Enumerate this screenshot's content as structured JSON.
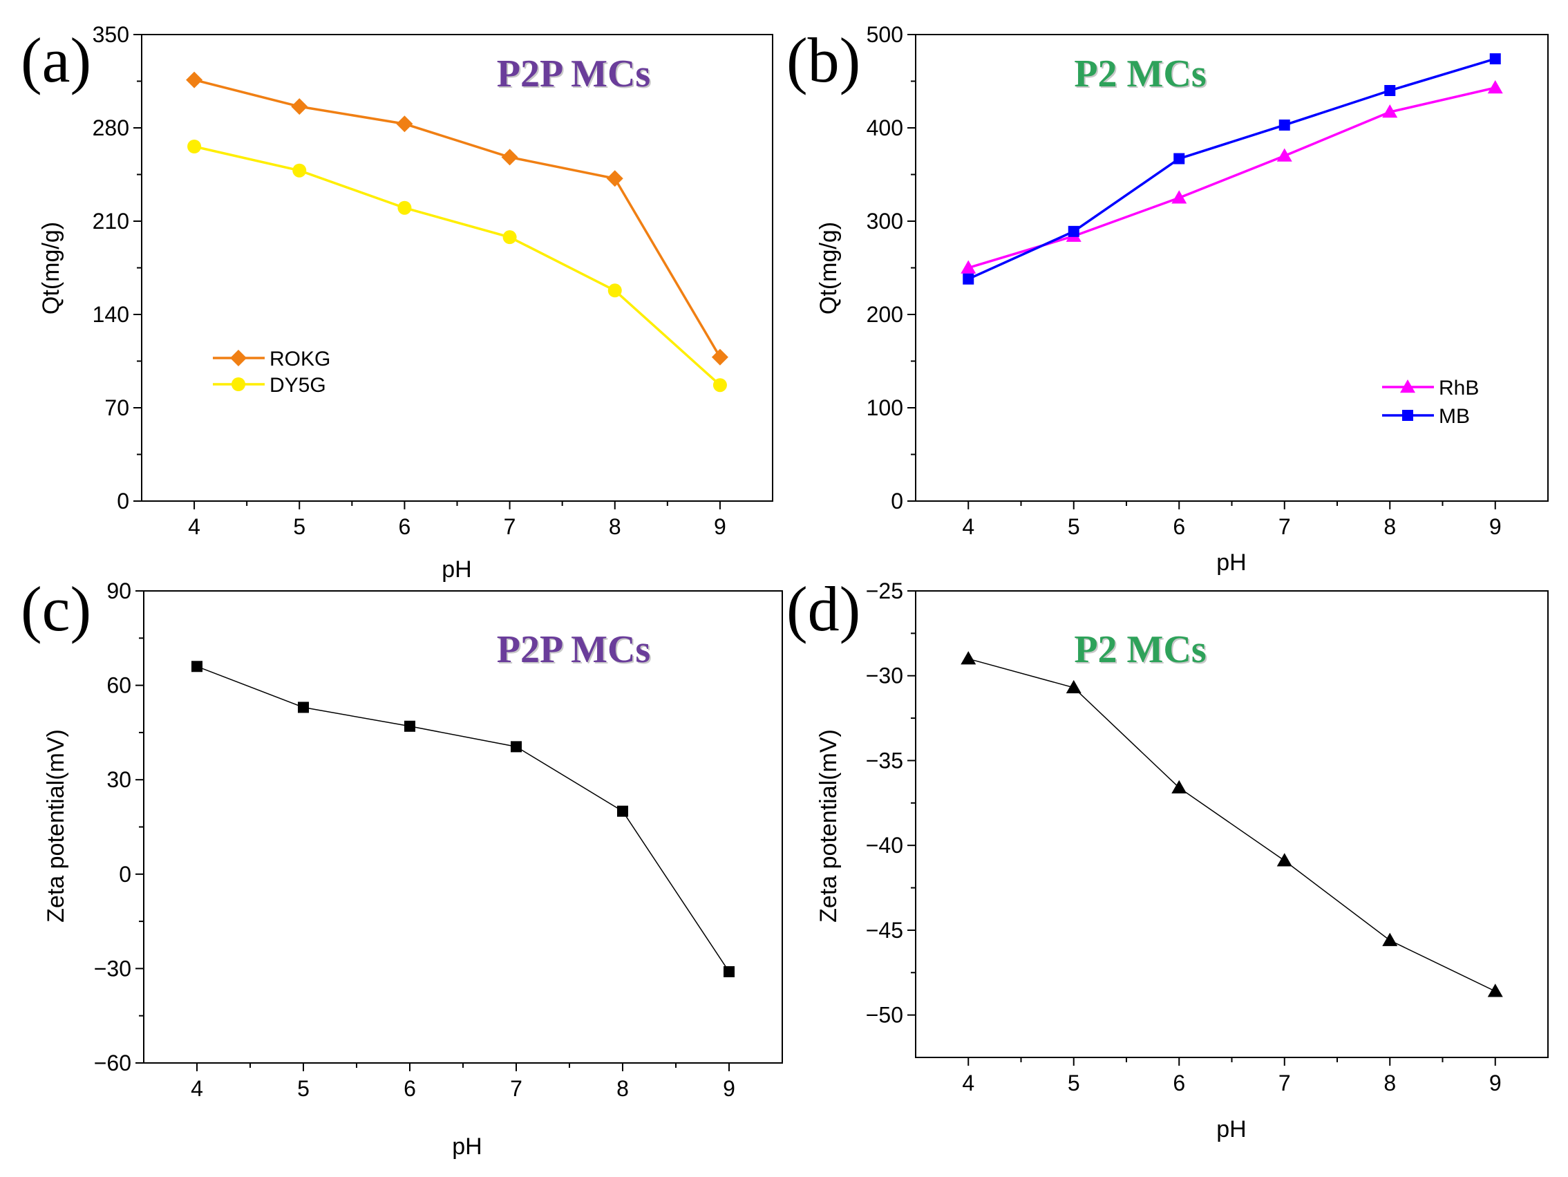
{
  "chart_data": [
    {
      "type": "line",
      "panel_label": "(a)",
      "annotation": "P2P MCs",
      "annotation_color": "#6a3d9a",
      "xlabel": "pH",
      "ylabel": "Qt(mg/g)",
      "x": [
        4,
        5,
        6,
        7,
        8,
        9
      ],
      "xlim": [
        3.5,
        9.5
      ],
      "ylim": [
        0,
        350
      ],
      "yticks": [
        0,
        70,
        140,
        210,
        280,
        350
      ],
      "ytick_labels": [
        "0",
        "70",
        "140",
        "210",
        "280",
        "350"
      ],
      "legend_position": "lower-left",
      "series": [
        {
          "name": "ROKG",
          "color": "#f07f13",
          "marker": "diamond",
          "values": [
            316,
            296,
            283,
            258,
            242,
            108
          ]
        },
        {
          "name": "DY5G",
          "color": "#ffee00",
          "marker": "circle",
          "values": [
            266,
            248,
            220,
            198,
            158,
            87
          ]
        }
      ]
    },
    {
      "type": "line",
      "panel_label": "(b)",
      "annotation": "P2 MCs",
      "annotation_color": "#2ea25a",
      "xlabel": "pH",
      "ylabel": "Qt(mg/g)",
      "x": [
        4,
        5,
        6,
        7,
        8,
        9
      ],
      "xlim": [
        3.5,
        9.5
      ],
      "ylim": [
        0,
        500
      ],
      "yticks": [
        0,
        100,
        200,
        300,
        400,
        500
      ],
      "ytick_labels": [
        "0",
        "100",
        "200",
        "300",
        "400",
        "500"
      ],
      "legend_position": "lower-right",
      "series": [
        {
          "name": "RhB",
          "color": "#ff00ff",
          "marker": "triangle",
          "values": [
            250,
            284,
            325,
            370,
            417,
            443
          ]
        },
        {
          "name": "MB",
          "color": "#0000ff",
          "marker": "square",
          "values": [
            238,
            289,
            367,
            403,
            440,
            474
          ]
        }
      ]
    },
    {
      "type": "line",
      "panel_label": "(c)",
      "annotation": "P2P MCs",
      "annotation_color": "#6a3d9a",
      "xlabel": "pH",
      "ylabel": "Zeta potential(mV)",
      "x": [
        4,
        5,
        6,
        7,
        8,
        9
      ],
      "xlim": [
        3.5,
        9.5
      ],
      "ylim": [
        -60,
        90
      ],
      "yticks": [
        -60,
        -30,
        0,
        30,
        60,
        90
      ],
      "ytick_labels": [
        "−60",
        "−30",
        "0",
        "30",
        "60",
        "90"
      ],
      "series": [
        {
          "name": "Zeta potential",
          "color": "#000000",
          "marker": "square",
          "values": [
            66,
            53,
            47,
            40.5,
            20,
            -31
          ]
        }
      ]
    },
    {
      "type": "line",
      "panel_label": "(d)",
      "annotation": "P2 MCs",
      "annotation_color": "#2ea25a",
      "xlabel": "pH",
      "ylabel": "Zeta potential(mV)",
      "x": [
        4,
        5,
        6,
        7,
        8,
        9
      ],
      "xlim": [
        3.5,
        9.5
      ],
      "ylim": [
        -52.5,
        -25
      ],
      "yticks": [
        -50,
        -45,
        -40,
        -35,
        -30,
        -25
      ],
      "ytick_labels": [
        "−50",
        "−45",
        "−40",
        "−35",
        "−30",
        "−25"
      ],
      "series": [
        {
          "name": "Zeta potential",
          "color": "#000000",
          "marker": "triangle",
          "values": [
            -29,
            -30.7,
            -36.6,
            -40.9,
            -45.6,
            -48.6
          ]
        }
      ]
    }
  ]
}
